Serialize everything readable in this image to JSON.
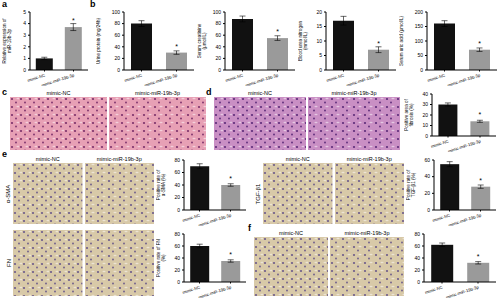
{
  "panel_letters": [
    "a",
    "b",
    "c",
    "d",
    "e",
    "f"
  ],
  "chart_data": [
    {
      "type": "bar",
      "ylabel": "Relative expression of miR-19b-3p",
      "categories": [
        "mimic-NC",
        "mimic-miR-19b-3p"
      ],
      "values": [
        1.0,
        3.7
      ],
      "errors": [
        0.1,
        0.3
      ],
      "colors": [
        "#111111",
        "#9a9a9a"
      ],
      "ylim": [
        0,
        5
      ],
      "yticks": [
        0,
        1,
        2,
        3,
        4,
        5
      ],
      "annotations": [
        null,
        "*"
      ]
    },
    {
      "type": "bar",
      "ylabel": "Urine protein (mg/24h)",
      "categories": [
        "mimic-NC",
        "mimic-miR-19b-3p"
      ],
      "values": [
        80,
        30
      ],
      "errors": [
        5,
        3
      ],
      "colors": [
        "#111111",
        "#9a9a9a"
      ],
      "ylim": [
        0,
        100
      ],
      "yticks": [
        0,
        20,
        40,
        60,
        80,
        100
      ],
      "annotations": [
        null,
        "*"
      ]
    },
    {
      "type": "bar",
      "ylabel": "Serum creatinine (μmol/L)",
      "categories": [
        "mimic-NC",
        "mimic-miR-19b-3p"
      ],
      "values": [
        88,
        55
      ],
      "errors": [
        5,
        4
      ],
      "colors": [
        "#111111",
        "#9a9a9a"
      ],
      "ylim": [
        0,
        100
      ],
      "yticks": [
        0,
        20,
        40,
        60,
        80,
        100
      ],
      "annotations": [
        null,
        "*"
      ]
    },
    {
      "type": "bar",
      "ylabel": "Blood urea nitrogen (mmol/L)",
      "categories": [
        "mimic-NC",
        "mimic-miR-19b-3p"
      ],
      "values": [
        17,
        7
      ],
      "errors": [
        1.5,
        1
      ],
      "colors": [
        "#111111",
        "#9a9a9a"
      ],
      "ylim": [
        0,
        20
      ],
      "yticks": [
        0,
        5,
        10,
        15,
        20
      ],
      "annotations": [
        null,
        "*"
      ]
    },
    {
      "type": "bar",
      "ylabel": "Serum uric acid (μmol/L)",
      "categories": [
        "mimic-NC",
        "mimic-miR-19b-3p"
      ],
      "values": [
        160,
        70
      ],
      "errors": [
        10,
        6
      ],
      "colors": [
        "#111111",
        "#9a9a9a"
      ],
      "ylim": [
        0,
        200
      ],
      "yticks": [
        0,
        50,
        100,
        150,
        200
      ],
      "annotations": [
        null,
        "*"
      ]
    },
    {
      "type": "bar",
      "ylabel": "Positive area of fibrosis (%)",
      "categories": [
        "mimic-NC",
        "mimic-miR-19b-3p"
      ],
      "values": [
        30,
        14
      ],
      "errors": [
        1.5,
        1
      ],
      "colors": [
        "#111111",
        "#9a9a9a"
      ],
      "ylim": [
        0,
        40
      ],
      "yticks": [
        0,
        10,
        20,
        30,
        40
      ],
      "annotations": [
        null,
        "*"
      ]
    },
    {
      "type": "bar",
      "ylabel": "Positive rate of α-SMA (%)",
      "categories": [
        "mimic-NC",
        "mimic-miR-19b-3p"
      ],
      "values": [
        70,
        40
      ],
      "errors": [
        4,
        2
      ],
      "colors": [
        "#111111",
        "#9a9a9a"
      ],
      "ylim": [
        0,
        80
      ],
      "yticks": [
        0,
        20,
        40,
        60,
        80
      ],
      "annotations": [
        null,
        "*"
      ]
    },
    {
      "type": "bar",
      "ylabel": "Positive rate of TGF-β1 (%)",
      "categories": [
        "mimic-NC",
        "mimic-miR-19b-3p"
      ],
      "values": [
        55,
        28
      ],
      "errors": [
        3,
        2
      ],
      "colors": [
        "#111111",
        "#9a9a9a"
      ],
      "ylim": [
        0,
        60
      ],
      "yticks": [
        0,
        20,
        40,
        60
      ],
      "annotations": [
        null,
        "*"
      ]
    },
    {
      "type": "bar",
      "ylabel": "Positive rate of FN (%)",
      "categories": [
        "mimic-NC",
        "mimic-miR-19b-3p"
      ],
      "values": [
        60,
        35
      ],
      "errors": [
        3,
        2
      ],
      "colors": [
        "#111111",
        "#9a9a9a"
      ],
      "ylim": [
        0,
        80
      ],
      "yticks": [
        0,
        20,
        40,
        60,
        80
      ],
      "annotations": [
        null,
        "*"
      ]
    },
    {
      "type": "bar",
      "categories": [
        "mimic-NC",
        "mimic-miR-19b-3p"
      ],
      "values": [
        62,
        32
      ],
      "errors": [
        3,
        2
      ],
      "colors": [
        "#111111",
        "#9a9a9a"
      ],
      "ylim": [
        0,
        80
      ],
      "yticks": [
        0,
        20,
        40,
        60,
        80
      ],
      "annotations": [
        null,
        "*"
      ]
    }
  ],
  "image_groups": [
    {
      "panel": "c",
      "columns": [
        "mimic-NC",
        "mimic-miR-19b-3p"
      ]
    },
    {
      "panel": "d",
      "columns": [
        "mimic-NC",
        "mimic-miR-19b-3p"
      ]
    },
    {
      "panel": "e",
      "stain": "α-SMA",
      "columns": [
        "mimic-NC",
        "mimic-miR-19b-3p"
      ]
    },
    {
      "panel": "e",
      "stain": "TGF-β1",
      "columns": [
        "mimic-NC",
        "mimic-miR-19b-3p"
      ]
    },
    {
      "panel": "e",
      "stain": "FN"
    },
    {
      "panel": "f",
      "columns": [
        "mimic-NC",
        "mimic-miR-19b-3p"
      ]
    }
  ]
}
